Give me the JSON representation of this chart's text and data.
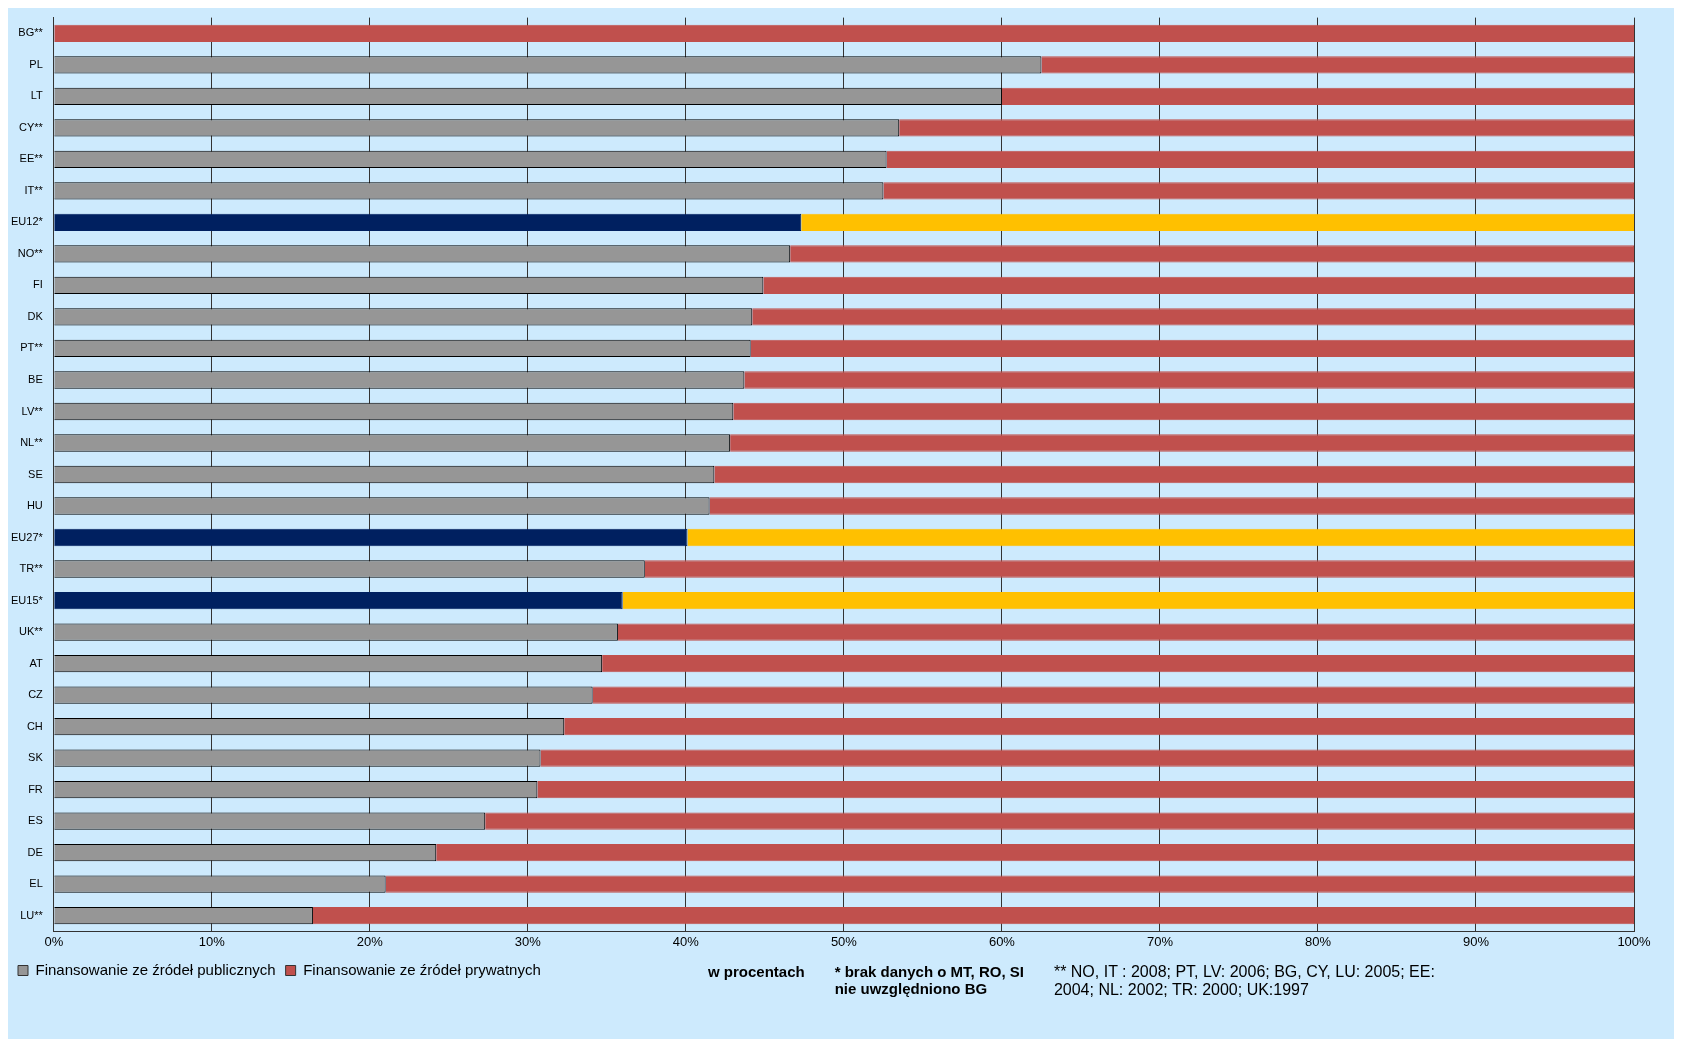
{
  "chart_data": {
    "type": "bar",
    "orientation": "horizontal",
    "stacked": true,
    "categories": [
      "BG**",
      "PL",
      "LT",
      "CY**",
      "EE**",
      "IT**",
      "EU12*",
      "NO**",
      "FI",
      "DK",
      "PT**",
      "BE",
      "LV**",
      "NL**",
      "SE",
      "HU",
      "EU27*",
      "TR**",
      "EU15*",
      "UK**",
      "AT",
      "CZ",
      "CH",
      "SK",
      "FR",
      "ES",
      "DE",
      "EL",
      "LU**"
    ],
    "series": [
      {
        "name": "Finansowanie ze źródeł publicznych",
        "color": "#969696",
        "colors": [
          "#969696",
          "#969696",
          "#969696",
          "#969696",
          "#969696",
          "#969696",
          "#002060",
          "#969696",
          "#969696",
          "#969696",
          "#969696",
          "#969696",
          "#969696",
          "#969696",
          "#969696",
          "#969696",
          "#002060",
          "#969696",
          "#002060",
          "#969696",
          "#969696",
          "#969696",
          "#969696",
          "#969696",
          "#969696",
          "#969696",
          "#969696",
          "#969696",
          "#969696"
        ],
        "values": [
          0,
          62.5,
          60.0,
          53.5,
          52.7,
          52.5,
          47.3,
          46.6,
          44.9,
          44.2,
          44.1,
          43.7,
          43.0,
          42.8,
          41.8,
          41.5,
          40.1,
          37.4,
          36.0,
          35.7,
          34.7,
          34.1,
          32.3,
          30.8,
          30.6,
          27.3,
          24.2,
          21.0,
          16.4
        ]
      },
      {
        "name": "Finansowanie ze źródeł prywatnych",
        "color": "#c0504d",
        "colors": [
          "#c0504d",
          "#c0504d",
          "#c0504d",
          "#c0504d",
          "#c0504d",
          "#c0504d",
          "#ffc000",
          "#c0504d",
          "#c0504d",
          "#c0504d",
          "#c0504d",
          "#c0504d",
          "#c0504d",
          "#c0504d",
          "#c0504d",
          "#c0504d",
          "#ffc000",
          "#c0504d",
          "#ffc000",
          "#c0504d",
          "#c0504d",
          "#c0504d",
          "#c0504d",
          "#c0504d",
          "#c0504d",
          "#c0504d",
          "#c0504d",
          "#c0504d",
          "#c0504d"
        ],
        "values": [
          100,
          37.5,
          40.0,
          46.5,
          47.3,
          47.5,
          52.7,
          53.4,
          55.1,
          55.8,
          55.9,
          56.3,
          57.0,
          57.2,
          58.2,
          58.5,
          59.9,
          62.6,
          64.0,
          64.3,
          65.3,
          65.9,
          67.7,
          69.2,
          69.4,
          72.7,
          75.8,
          79.0,
          83.6
        ]
      }
    ],
    "xlim": [
      0,
      100
    ],
    "xticks": [
      {
        "value": 0,
        "label": "0%"
      },
      {
        "value": 10,
        "label": "10%"
      },
      {
        "value": 20,
        "label": "20%"
      },
      {
        "value": 30,
        "label": "30%"
      },
      {
        "value": 40,
        "label": "40%"
      },
      {
        "value": 50,
        "label": "50%"
      },
      {
        "value": 60,
        "label": "60%"
      },
      {
        "value": 70,
        "label": "70%"
      },
      {
        "value": 80,
        "label": "80%"
      },
      {
        "value": 90,
        "label": "90%"
      },
      {
        "value": 100,
        "label": "100%"
      }
    ],
    "grid": "x",
    "legend": "bottom left",
    "annotations": [
      "w procentach",
      "* brak danych o MT, RO, SI",
      "nie uwzględniono BG",
      "** NO, IT : 2008; PT, LV: 2006; BG, CY, LU: 2005; EE: 2004; NL: 2002; TR: 2000; UK:1997"
    ]
  }
}
